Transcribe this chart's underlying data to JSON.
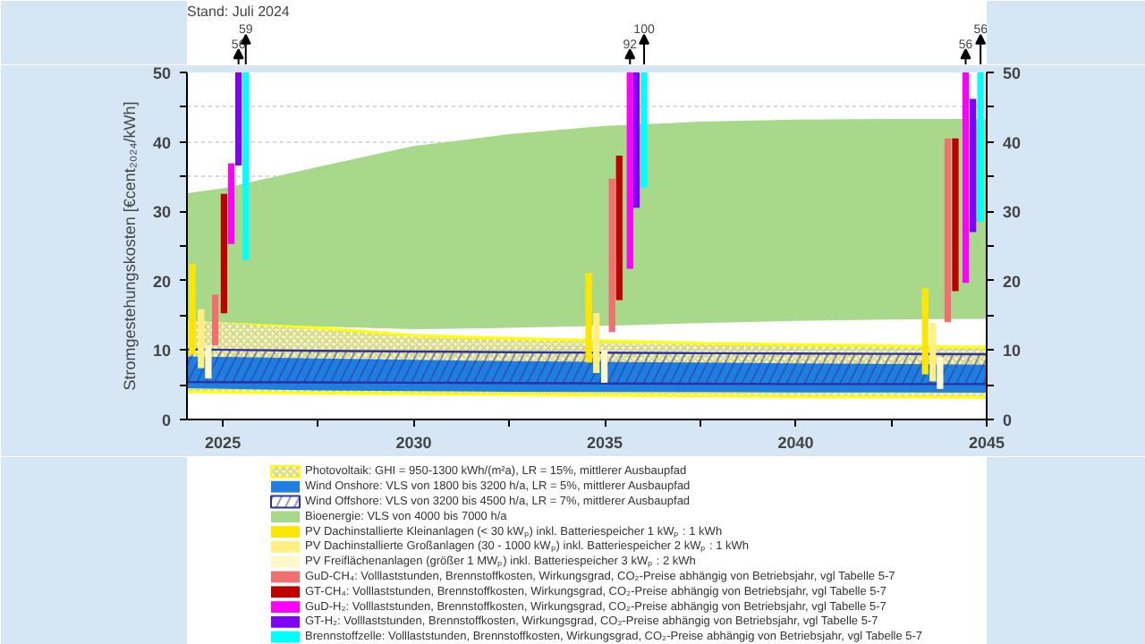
{
  "chart_data": {
    "type": "bar",
    "ylabel": "Stromgestehungskosten [€cent₂₀₂₄/kWh]",
    "xlim": [
      2024.06,
      2045
    ],
    "xticks": [
      2025,
      {
        "value": 2027.5,
        "label": null
      },
      2030,
      {
        "value": 2032.5,
        "label": null
      },
      2035,
      {
        "value": 2037.5,
        "label": null
      },
      2040,
      {
        "value": 2042.5,
        "label": null
      },
      2045
    ],
    "ylim": [
      0,
      50
    ],
    "yticks": [
      0,
      {
        "value": 5,
        "label": null
      },
      10,
      {
        "value": 15,
        "label": null
      },
      20,
      {
        "value": 25,
        "label": null
      },
      30,
      {
        "value": 35,
        "label": null
      },
      40,
      {
        "value": 45,
        "label": null
      },
      50
    ],
    "y2lim": [
      0,
      50
    ],
    "y2ticks": [
      0,
      {
        "value": 5,
        "label": null
      },
      10,
      {
        "value": 15,
        "label": null
      },
      20,
      {
        "value": 25,
        "label": null
      },
      30,
      {
        "value": 35,
        "label": null
      },
      40,
      {
        "value": 45,
        "label": null
      },
      50
    ],
    "grid": "y",
    "legend": "bottom",
    "series": [
      {
        "type": "area",
        "name": "Bioenergie: VLS von 4000 bis 7000 h/a",
        "color": "#a8d98a",
        "x": [
          2024.06,
          2025,
          2027.5,
          2030,
          2032.5,
          2035,
          2037.5,
          2040,
          2042.5,
          2045
        ],
        "values": [
          null,
          null,
          null,
          null,
          null,
          null,
          null,
          null,
          null,
          null
        ],
        "lower": [
          14.3,
          14.0,
          13.4,
          13.0,
          13.2,
          13.5,
          13.9,
          14.2,
          14.4,
          14.5
        ],
        "upper": [
          32.6,
          33.3,
          36.4,
          39.4,
          41.1,
          42.3,
          42.9,
          43.2,
          43.3,
          43.3
        ]
      },
      {
        "type": "area",
        "name": "Photovoltaik: GHI = 950-1300 kWh/(m²a), LR = 15%, mittlerer Ausbaupfad",
        "color": "#ffff00",
        "x": [
          2024.06,
          2027.5,
          2030,
          2032.5,
          2037.5,
          2040,
          2042.5,
          2045
        ],
        "values": [
          null,
          null,
          null,
          null,
          null,
          null,
          null,
          null
        ],
        "lower": [
          4.0,
          3.8,
          3.7,
          3.6,
          3.4,
          3.3,
          3.25,
          3.2
        ],
        "upper": [
          14.5,
          13.2,
          12.1,
          11.7,
          11.0,
          10.8,
          10.6,
          10.4
        ]
      },
      {
        "type": "area",
        "name": "Wind Onshore: VLS von 1800 bis 3200 h/a, LR = 5%, mittlerer Ausbaupfad",
        "color": "#1e7fe0",
        "x": [
          2024.06,
          2027.5,
          2030,
          2032.5,
          2037.5,
          2040,
          2042.5,
          2045
        ],
        "values": [
          null,
          null,
          null,
          null,
          null,
          null,
          null,
          null
        ],
        "lower": [
          4.5,
          4.2,
          4.1,
          4.0,
          3.95,
          3.9,
          3.9,
          3.85
        ],
        "upper": [
          9.1,
          8.8,
          8.6,
          8.4,
          8.2,
          8.1,
          8.0,
          7.9
        ]
      },
      {
        "type": "area",
        "name": "Wind Offshore: VLS von 3200 bis 4500 h/a, LR = 7%, mittlerer Ausbaupfad",
        "color": "#3030a0",
        "x": [
          2024.06,
          2027.5,
          2030,
          2032.5,
          2037.5,
          2040,
          2042.5,
          2045
        ],
        "values": [
          null,
          null,
          null,
          null,
          null,
          null,
          null,
          null
        ],
        "lower": [
          5.4,
          5.35,
          5.3,
          5.25,
          5.15,
          5.1,
          5.1,
          5.1
        ],
        "upper": [
          10.1,
          9.9,
          9.8,
          9.7,
          9.55,
          9.5,
          9.45,
          9.4
        ]
      },
      {
        "name": "PV Dachinstallierte Kleinanlagen (< 30 kWₚ) inkl. Batteriespeicher 1 kWₚ : 1 kWh",
        "color": "#ffe600",
        "x": [
          2024.2,
          2034.58,
          2043.39
        ],
        "base": [
          9.4,
          8.2,
          6.5
        ],
        "values": [
          13.0,
          12.9,
          12.4
        ]
      },
      {
        "name": "PV Dachinstallierte Großanlagen (30 - 1000 kWₚ) inkl. Batteriespeicher 2 kWₚ : 1 kWh",
        "color": "#fff080",
        "x": [
          2024.43,
          2034.78,
          2043.59
        ],
        "base": [
          7.4,
          6.7,
          5.5
        ],
        "values": [
          8.5,
          8.6,
          8.4
        ]
      },
      {
        "name": "PV Freiflächenanlagen (größer 1 MWₚ) inkl. Batteriespeicher 3 kWₚ : 2 kWh",
        "color": "#fff8c8",
        "x": [
          2024.62,
          2034.99,
          2043.78
        ],
        "base": [
          5.9,
          5.3,
          4.4
        ],
        "values": [
          4.8,
          4.7,
          4.6
        ]
      },
      {
        "name": "GuD-CH₄: Volllaststunden, Brennstoffkosten, Wirkungsgrad, CO₂-Preise abhängig von Betriebsjahr, vgl Tabelle 5-7",
        "color": "#f07070",
        "x": [
          2024.8,
          2035.19,
          2043.98
        ],
        "base": [
          10.7,
          12.6,
          14.0
        ],
        "values": [
          7.3,
          22.1,
          26.5
        ]
      },
      {
        "name": "GT-CH₄: Volllaststunden, Brennstoffkosten, Wirkungsgrad, CO₂-Preise abhängig von Betriebsjahr, vgl Tabelle 5-7",
        "color": "#c00000",
        "x": [
          2025.03,
          2035.38,
          2044.18
        ],
        "base": [
          15.3,
          17.2,
          18.5
        ],
        "values": [
          17.2,
          20.8,
          22.0
        ]
      },
      {
        "name": "GuD-H₂: Volllaststunden, Brennstoffkosten, Wirkungsgrad, CO₂-Preise abhängig von Betriebsjahr, vgl Tabelle 5-7",
        "color": "#ff00ff",
        "x": [
          2025.22,
          2035.66,
          2044.45
        ],
        "base": [
          25.3,
          21.7,
          19.7
        ],
        "values": [
          11.6,
          28.3,
          30.3
        ]
      },
      {
        "name": "GT-H₂: Volllaststunden, Brennstoffkosten, Wirkungsgrad, CO₂-Preise abhängig von Betriebsjahr, vgl Tabelle 5-7",
        "color": "#8000ff",
        "x": [
          2025.41,
          2035.83,
          2044.64
        ],
        "base": [
          36.6,
          30.5,
          27.0
        ],
        "values": [
          13.4,
          19.5,
          19.2
        ]
      },
      {
        "name": "Brennstoffzelle: Volllaststunden, Brennstoffkosten, Wirkungsgrad, CO₂-Preise abhängig von Betriebsjahr, vgl Tabelle 5-7",
        "color": "#00ffff",
        "x": [
          2025.6,
          2036.03,
          2044.84
        ],
        "base": [
          23.0,
          33.4,
          28.5
        ],
        "values": [
          27.0,
          16.6,
          21.5
        ]
      }
    ],
    "annotations": [
      "Stand: Juli 2024",
      {
        "text": "56",
        "x": 2025.41,
        "y": 50
      },
      {
        "text": "59",
        "x": 2025.6,
        "y": 50
      },
      {
        "text": "92",
        "x": 2035.66,
        "y": 50
      },
      {
        "text": "100",
        "x": 2036.03,
        "y": 50
      },
      {
        "text": "56",
        "x": 2044.45,
        "y": 50
      },
      {
        "text": "56",
        "x": 2044.84,
        "y": 50
      }
    ]
  }
}
